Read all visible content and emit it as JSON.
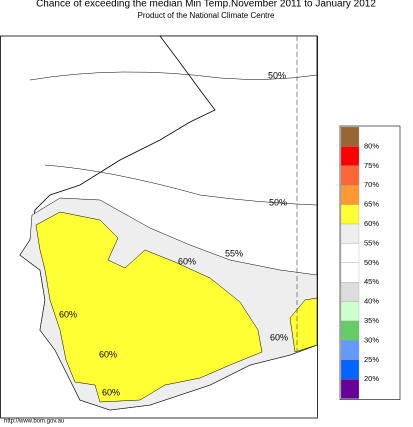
{
  "header": {
    "title": "Chance of exceeding the median Min Temp.November 2011 to January 2012",
    "subtitle": "Product of the National Climate Centre"
  },
  "legend": {
    "colors": [
      "#996633",
      "#ff0000",
      "#ff6633",
      "#ff9933",
      "#ffff33",
      "#eeeeee",
      "#ffffff",
      "#ffffff",
      "#dddddd",
      "#ccffcc",
      "#66cc66",
      "#6699ff",
      "#0066ff",
      "#660099"
    ],
    "labels": [
      "80%",
      "75%",
      "70%",
      "65%",
      "60%",
      "55%",
      "50%",
      "45%",
      "40%",
      "35%",
      "30%",
      "25%",
      "20%"
    ]
  },
  "map": {
    "labels": [
      "50%",
      "50%",
      "55%",
      "60%",
      "60%",
      "60%",
      "60%",
      "60%"
    ]
  },
  "footer": {
    "url": "http://www.bom.gov.au"
  }
}
